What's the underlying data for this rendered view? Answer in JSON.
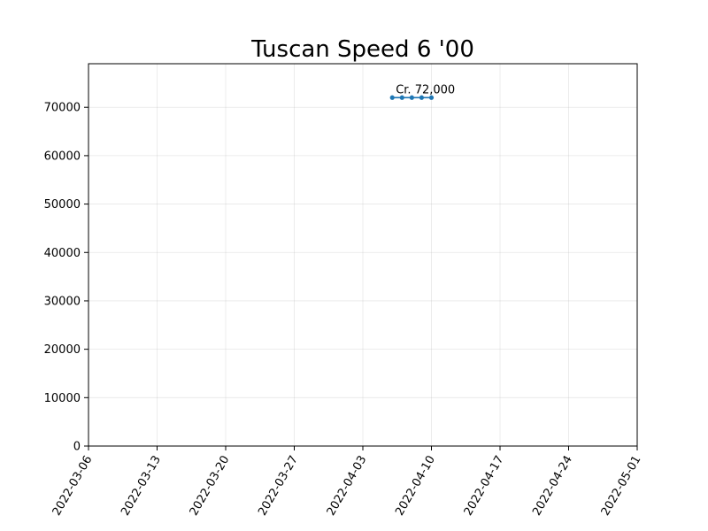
{
  "chart_data": {
    "type": "line",
    "title": "Tuscan Speed 6 '00",
    "xlabel": "",
    "ylabel": "",
    "x_axis_type": "date",
    "xlim": [
      "2022-03-06",
      "2022-05-01"
    ],
    "ylim": [
      0,
      79000
    ],
    "x_ticks": [
      "2022-03-06",
      "2022-03-13",
      "2022-03-20",
      "2022-03-27",
      "2022-04-03",
      "2022-04-10",
      "2022-04-17",
      "2022-04-24",
      "2022-05-01"
    ],
    "y_ticks": [
      "0",
      "10000",
      "20000",
      "30000",
      "40000",
      "50000",
      "60000",
      "70000"
    ],
    "grid": true,
    "series": [
      {
        "color": "#1f77b4",
        "x": [
          "2022-04-06",
          "2022-04-07",
          "2022-04-08",
          "2022-04-09",
          "2022-04-10"
        ],
        "y": [
          72000,
          72000,
          72000,
          72000,
          72000
        ]
      }
    ],
    "annotations": [
      {
        "text": "Cr. 72,000",
        "x": "2022-04-06",
        "y": 72000
      }
    ]
  }
}
